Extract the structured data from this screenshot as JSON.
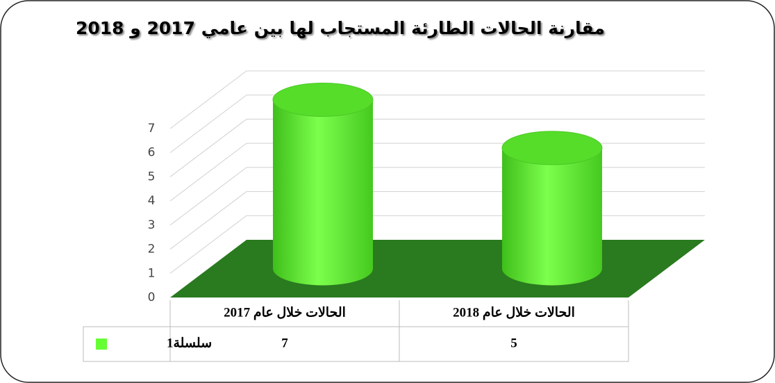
{
  "chart_data": {
    "type": "bar",
    "title": "مقارنة الحالات الطارئة المستجاب لها بين عامي 2017 و 2018",
    "categories": [
      "الحالات خلال عام 2017",
      "الحالات خلال عام 2018"
    ],
    "series": [
      {
        "name": "سلسلة1",
        "color": "#66ff33",
        "values": [
          7,
          5
        ]
      }
    ],
    "ylim": [
      0,
      7
    ],
    "yticks": [
      0,
      1,
      2,
      3,
      4,
      5,
      6,
      7
    ],
    "grid": true
  }
}
